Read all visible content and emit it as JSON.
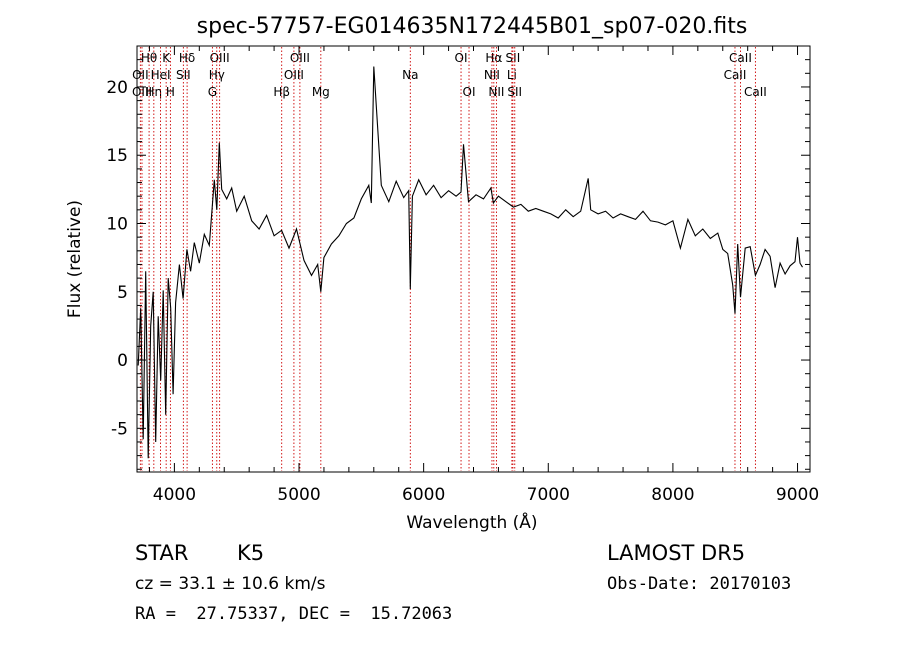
{
  "chart_data": {
    "type": "line",
    "title": "spec-57757-EG014635N172445B01_sp07-020.fits",
    "xlabel": "Wavelength (Å)",
    "ylabel": "Flux (relative)",
    "xlim": [
      3700,
      9100
    ],
    "ylim": [
      -8.2,
      23
    ],
    "x_ticks": [
      4000,
      5000,
      6000,
      7000,
      8000,
      9000
    ],
    "y_ticks": [
      -5,
      0,
      5,
      10,
      15,
      20
    ],
    "line_color": "#000000",
    "marker_color": "#cc0000",
    "series": [
      {
        "x": [
          3710,
          3730,
          3750,
          3770,
          3790,
          3810,
          3830,
          3850,
          3870,
          3890,
          3910,
          3930,
          3950,
          3970,
          3990,
          4010,
          4040,
          4070,
          4100,
          4130,
          4160,
          4200,
          4240,
          4280,
          4320,
          4340,
          4360,
          4380,
          4420,
          4460,
          4500,
          4560,
          4620,
          4680,
          4740,
          4800,
          4860,
          4920,
          4980,
          5040,
          5100,
          5150,
          5175,
          5200,
          5260,
          5320,
          5380,
          5440,
          5500,
          5560,
          5580,
          5600,
          5660,
          5720,
          5780,
          5840,
          5880,
          5893,
          5910,
          5960,
          6020,
          6080,
          6140,
          6200,
          6260,
          6300,
          6320,
          6360,
          6420,
          6480,
          6540,
          6560,
          6600,
          6660,
          6720,
          6780,
          6840,
          6900,
          6960,
          7020,
          7080,
          7140,
          7200,
          7260,
          7320,
          7340,
          7400,
          7460,
          7520,
          7580,
          7640,
          7700,
          7760,
          7820,
          7880,
          7940,
          8000,
          8060,
          8120,
          8180,
          8240,
          8300,
          8360,
          8400,
          8440,
          8480,
          8498,
          8520,
          8542,
          8580,
          8620,
          8662,
          8700,
          8740,
          8780,
          8820,
          8860,
          8900,
          8940,
          8980,
          9000,
          9020,
          9040
        ],
        "values": [
          -0.4,
          3.8,
          -5.8,
          6.5,
          -7.2,
          2.5,
          5.0,
          -6.0,
          3.2,
          -1.5,
          5.1,
          -4.0,
          6.0,
          3.8,
          -2.5,
          4.2,
          7.0,
          4.5,
          8.1,
          6.5,
          8.6,
          7.1,
          9.2,
          8.4,
          13.2,
          11.0,
          15.9,
          12.5,
          11.8,
          12.6,
          10.9,
          12.0,
          10.2,
          9.6,
          10.6,
          9.1,
          9.5,
          8.2,
          9.6,
          7.3,
          6.2,
          7.0,
          5.0,
          7.5,
          8.5,
          9.1,
          10.0,
          10.4,
          11.8,
          12.8,
          11.5,
          21.5,
          12.8,
          11.6,
          13.1,
          11.9,
          12.4,
          5.2,
          12.0,
          13.2,
          12.1,
          12.8,
          11.9,
          12.4,
          12.0,
          12.3,
          15.8,
          11.6,
          12.1,
          11.8,
          12.6,
          11.5,
          12.0,
          11.6,
          11.2,
          11.4,
          10.9,
          11.1,
          10.9,
          10.7,
          10.4,
          11.0,
          10.5,
          10.9,
          13.3,
          11.0,
          10.7,
          10.9,
          10.4,
          10.7,
          10.5,
          10.3,
          10.9,
          10.2,
          10.1,
          9.9,
          10.2,
          8.2,
          10.3,
          9.1,
          9.6,
          8.9,
          9.3,
          8.1,
          7.8,
          5.5,
          3.4,
          8.5,
          4.6,
          8.2,
          8.3,
          6.2,
          7.0,
          8.1,
          7.6,
          5.3,
          7.1,
          6.3,
          6.9,
          7.2,
          9.0,
          7.1,
          6.8
        ]
      }
    ],
    "lines": [
      {
        "label": "Hθ",
        "wl": 3797,
        "row": 0
      },
      {
        "label": "OII",
        "wl": 3727,
        "row": 1
      },
      {
        "label": "OIII",
        "wl": 3740,
        "row": 2
      },
      {
        "label": "Hη",
        "wl": 3835,
        "row": 2
      },
      {
        "label": "K",
        "wl": 3934,
        "row": 0
      },
      {
        "label": "HeI",
        "wl": 3889,
        "row": 1
      },
      {
        "label": "H",
        "wl": 3968,
        "row": 2
      },
      {
        "label": "Hδ",
        "wl": 4102,
        "row": 0
      },
      {
        "label": "SII",
        "wl": 4072,
        "row": 1
      },
      {
        "label": "OIII",
        "wl": 4363,
        "row": 0
      },
      {
        "label": "Hγ",
        "wl": 4340,
        "row": 1
      },
      {
        "label": "G",
        "wl": 4305,
        "row": 2
      },
      {
        "label": "OIII",
        "wl": 5007,
        "row": 0
      },
      {
        "label": "OIII",
        "wl": 4959,
        "row": 1
      },
      {
        "label": "Hβ",
        "wl": 4861,
        "row": 2
      },
      {
        "label": "Mg",
        "wl": 5175,
        "row": 2
      },
      {
        "label": "Na",
        "wl": 5893,
        "row": 1
      },
      {
        "label": "OI",
        "wl": 6300,
        "row": 0
      },
      {
        "label": "OI",
        "wl": 6364,
        "row": 2
      },
      {
        "label": "Hα",
        "wl": 6563,
        "row": 0
      },
      {
        "label": "NII",
        "wl": 6548,
        "row": 1
      },
      {
        "label": "NII",
        "wl": 6584,
        "row": 2
      },
      {
        "label": "SII",
        "wl": 6716,
        "row": 0
      },
      {
        "label": "Li",
        "wl": 6708,
        "row": 1
      },
      {
        "label": "SII",
        "wl": 6731,
        "row": 2
      },
      {
        "label": "CaII",
        "wl": 8542,
        "row": 0
      },
      {
        "label": "CaII",
        "wl": 8498,
        "row": 1
      },
      {
        "label": "CaII",
        "wl": 8662,
        "row": 2
      }
    ]
  },
  "info": {
    "class": "STAR",
    "subclass": "K5",
    "survey": "LAMOST DR5",
    "cz": "cz = 33.1 ± 10.6 km/s",
    "obs_date": "Obs-Date: 20170103",
    "coords": "RA =  27.75337, DEC =  15.72063"
  }
}
